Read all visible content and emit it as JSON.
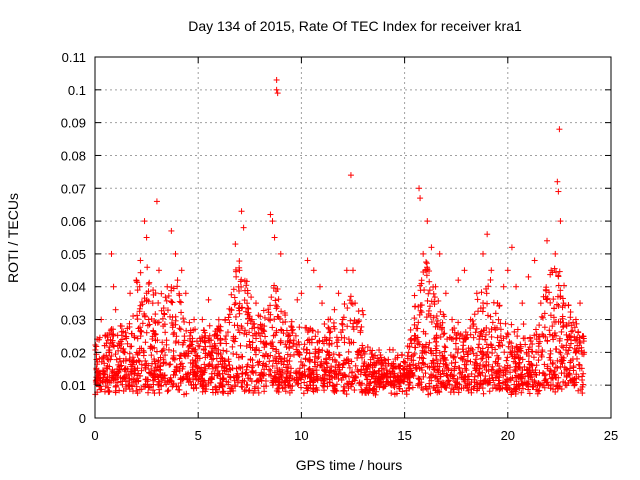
{
  "chart_data": {
    "type": "scatter",
    "title": "Day 134 of 2015, Rate Of TEC Index for receiver kra1",
    "xlabel": "GPS time / hours",
    "ylabel": "ROTI / TECUs",
    "xlim": [
      0,
      25
    ],
    "ylim": [
      0,
      0.11
    ],
    "xticks": [
      0,
      5,
      10,
      15,
      20,
      25
    ],
    "yticks": [
      0,
      0.01,
      0.02,
      0.03,
      0.04,
      0.05,
      0.06,
      0.07,
      0.08,
      0.09,
      0.1,
      0.11
    ],
    "xtick_labels": [
      "0",
      "5",
      "10",
      "15",
      "20",
      "25"
    ],
    "ytick_labels": [
      "0",
      "0.01",
      "0.02",
      "0.03",
      "0.04",
      "0.05",
      "0.06",
      "0.07",
      "0.08",
      "0.09",
      "0.1",
      "0.11"
    ],
    "grid": true,
    "marker": "plus",
    "color": "#ff0000",
    "series": [
      {
        "points": [
          [
            0.2,
            0.012
          ],
          [
            0.3,
            0.03
          ],
          [
            0.4,
            0.018
          ],
          [
            0.5,
            0.025
          ],
          [
            0.6,
            0.015
          ],
          [
            0.7,
            0.02
          ],
          [
            0.8,
            0.05
          ],
          [
            0.9,
            0.04
          ],
          [
            1.0,
            0.033
          ],
          [
            1.1,
            0.022
          ],
          [
            1.3,
            0.028
          ],
          [
            1.5,
            0.018
          ],
          [
            1.7,
            0.038
          ],
          [
            1.9,
            0.025
          ],
          [
            2.0,
            0.042
          ],
          [
            2.2,
            0.048
          ],
          [
            2.4,
            0.06
          ],
          [
            2.5,
            0.055
          ],
          [
            2.6,
            0.03
          ],
          [
            2.8,
            0.035
          ],
          [
            3.0,
            0.066
          ],
          [
            3.1,
            0.045
          ],
          [
            3.3,
            0.028
          ],
          [
            3.5,
            0.04
          ],
          [
            3.7,
            0.057
          ],
          [
            3.9,
            0.05
          ],
          [
            4.0,
            0.042
          ],
          [
            4.2,
            0.045
          ],
          [
            4.4,
            0.038
          ],
          [
            4.6,
            0.025
          ],
          [
            4.8,
            0.03
          ],
          [
            5.0,
            0.022
          ],
          [
            5.2,
            0.03
          ],
          [
            5.5,
            0.036
          ],
          [
            5.7,
            0.02
          ],
          [
            6.0,
            0.028
          ],
          [
            6.3,
            0.024
          ],
          [
            6.6,
            0.033
          ],
          [
            6.8,
            0.053
          ],
          [
            7.0,
            0.045
          ],
          [
            7.1,
            0.063
          ],
          [
            7.2,
            0.058
          ],
          [
            7.4,
            0.038
          ],
          [
            7.6,
            0.03
          ],
          [
            7.8,
            0.035
          ],
          [
            8.0,
            0.025
          ],
          [
            8.2,
            0.028
          ],
          [
            8.5,
            0.062
          ],
          [
            8.6,
            0.06
          ],
          [
            8.7,
            0.055
          ],
          [
            8.8,
            0.103
          ],
          [
            8.8,
            0.1
          ],
          [
            8.85,
            0.099
          ],
          [
            9.0,
            0.05
          ],
          [
            9.2,
            0.032
          ],
          [
            9.5,
            0.028
          ],
          [
            9.8,
            0.036
          ],
          [
            10.0,
            0.038
          ],
          [
            10.3,
            0.048
          ],
          [
            10.6,
            0.045
          ],
          [
            10.9,
            0.04
          ],
          [
            11.0,
            0.035
          ],
          [
            11.3,
            0.03
          ],
          [
            11.6,
            0.033
          ],
          [
            11.8,
            0.038
          ],
          [
            12.0,
            0.03
          ],
          [
            12.2,
            0.045
          ],
          [
            12.4,
            0.074
          ],
          [
            12.5,
            0.045
          ],
          [
            12.6,
            0.035
          ],
          [
            12.8,
            0.02
          ],
          [
            13.2,
            0.015
          ],
          [
            13.6,
            0.012
          ],
          [
            14.0,
            0.013
          ],
          [
            14.4,
            0.014
          ],
          [
            14.8,
            0.016
          ],
          [
            15.2,
            0.02
          ],
          [
            15.5,
            0.025
          ],
          [
            15.7,
            0.07
          ],
          [
            15.75,
            0.067
          ],
          [
            15.9,
            0.05
          ],
          [
            16.0,
            0.045
          ],
          [
            16.1,
            0.06
          ],
          [
            16.3,
            0.052
          ],
          [
            16.5,
            0.04
          ],
          [
            16.7,
            0.05
          ],
          [
            17.0,
            0.038
          ],
          [
            17.3,
            0.03
          ],
          [
            17.6,
            0.042
          ],
          [
            17.9,
            0.045
          ],
          [
            18.2,
            0.03
          ],
          [
            18.5,
            0.038
          ],
          [
            18.8,
            0.05
          ],
          [
            19.0,
            0.056
          ],
          [
            19.2,
            0.045
          ],
          [
            19.5,
            0.035
          ],
          [
            19.8,
            0.04
          ],
          [
            20.0,
            0.045
          ],
          [
            20.2,
            0.052
          ],
          [
            20.4,
            0.04
          ],
          [
            20.7,
            0.035
          ],
          [
            21.0,
            0.043
          ],
          [
            21.3,
            0.048
          ],
          [
            21.6,
            0.035
          ],
          [
            21.9,
            0.054
          ],
          [
            22.1,
            0.045
          ],
          [
            22.3,
            0.05
          ],
          [
            22.4,
            0.072
          ],
          [
            22.45,
            0.069
          ],
          [
            22.5,
            0.088
          ],
          [
            22.55,
            0.06
          ],
          [
            22.7,
            0.035
          ],
          [
            23.0,
            0.025
          ],
          [
            23.3,
            0.03
          ],
          [
            23.5,
            0.035
          ],
          [
            23.7,
            0.02
          ]
        ]
      }
    ]
  }
}
